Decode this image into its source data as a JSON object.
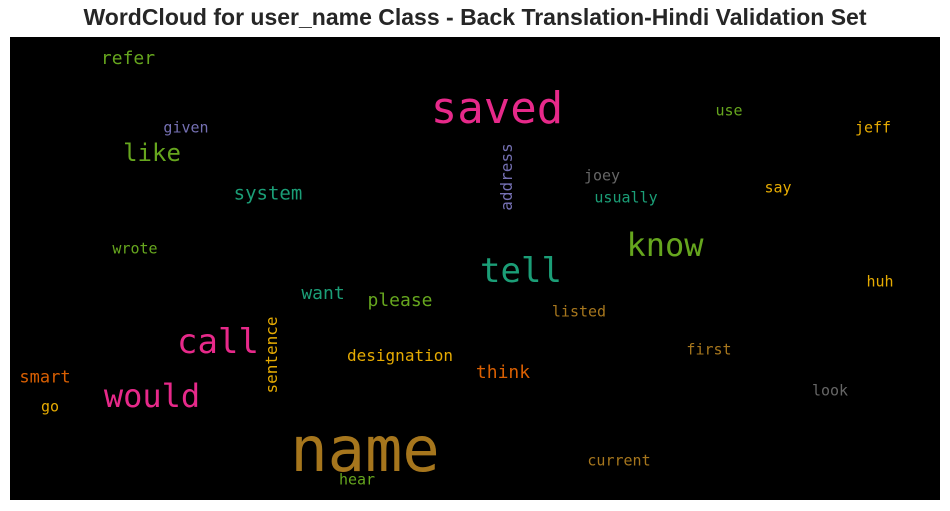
{
  "chart_data": {
    "type": "wordcloud",
    "title": "WordCloud for user_name Class - Back Translation-Hindi Validation Set",
    "background": "#000000",
    "words": [
      {
        "text": "name",
        "color": "#a6761d",
        "weight": 1.0
      },
      {
        "text": "saved",
        "color": "#e7298a",
        "weight": 0.7
      },
      {
        "text": "tell",
        "color": "#1b9e77",
        "weight": 0.55
      },
      {
        "text": "call",
        "color": "#e7298a",
        "weight": 0.55
      },
      {
        "text": "know",
        "color": "#66a61e",
        "weight": 0.5
      },
      {
        "text": "would",
        "color": "#e7298a",
        "weight": 0.5
      },
      {
        "text": "like",
        "color": "#66a61e",
        "weight": 0.4
      },
      {
        "text": "system",
        "color": "#1b9e77",
        "weight": 0.3
      },
      {
        "text": "refer",
        "color": "#66a61e",
        "weight": 0.27
      },
      {
        "text": "please",
        "color": "#66a61e",
        "weight": 0.27
      },
      {
        "text": "think",
        "color": "#d95f02",
        "weight": 0.27
      },
      {
        "text": "want",
        "color": "#1b9e77",
        "weight": 0.27
      },
      {
        "text": "smart",
        "color": "#d95f02",
        "weight": 0.25
      },
      {
        "text": "address",
        "color": "#7570b3",
        "weight": 0.23,
        "vertical": true
      },
      {
        "text": "sentence",
        "color": "#e6ab02",
        "weight": 0.23,
        "vertical": true
      },
      {
        "text": "designation",
        "color": "#e6ab02",
        "weight": 0.23
      },
      {
        "text": "given",
        "color": "#7570b3",
        "weight": 0.2
      },
      {
        "text": "use",
        "color": "#66a61e",
        "weight": 0.2
      },
      {
        "text": "jeff",
        "color": "#e6ab02",
        "weight": 0.2
      },
      {
        "text": "joey",
        "color": "#666666",
        "weight": 0.2
      },
      {
        "text": "usually",
        "color": "#1b9e77",
        "weight": 0.2
      },
      {
        "text": "say",
        "color": "#e6ab02",
        "weight": 0.2
      },
      {
        "text": "wrote",
        "color": "#66a61e",
        "weight": 0.2
      },
      {
        "text": "listed",
        "color": "#a6761d",
        "weight": 0.2
      },
      {
        "text": "huh",
        "color": "#e6ab02",
        "weight": 0.2
      },
      {
        "text": "first",
        "color": "#a6761d",
        "weight": 0.2
      },
      {
        "text": "go",
        "color": "#e6ab02",
        "weight": 0.2
      },
      {
        "text": "look",
        "color": "#666666",
        "weight": 0.2
      },
      {
        "text": "current",
        "color": "#a6761d",
        "weight": 0.2
      },
      {
        "text": "hear",
        "color": "#66a61e",
        "weight": 0.2
      }
    ]
  }
}
